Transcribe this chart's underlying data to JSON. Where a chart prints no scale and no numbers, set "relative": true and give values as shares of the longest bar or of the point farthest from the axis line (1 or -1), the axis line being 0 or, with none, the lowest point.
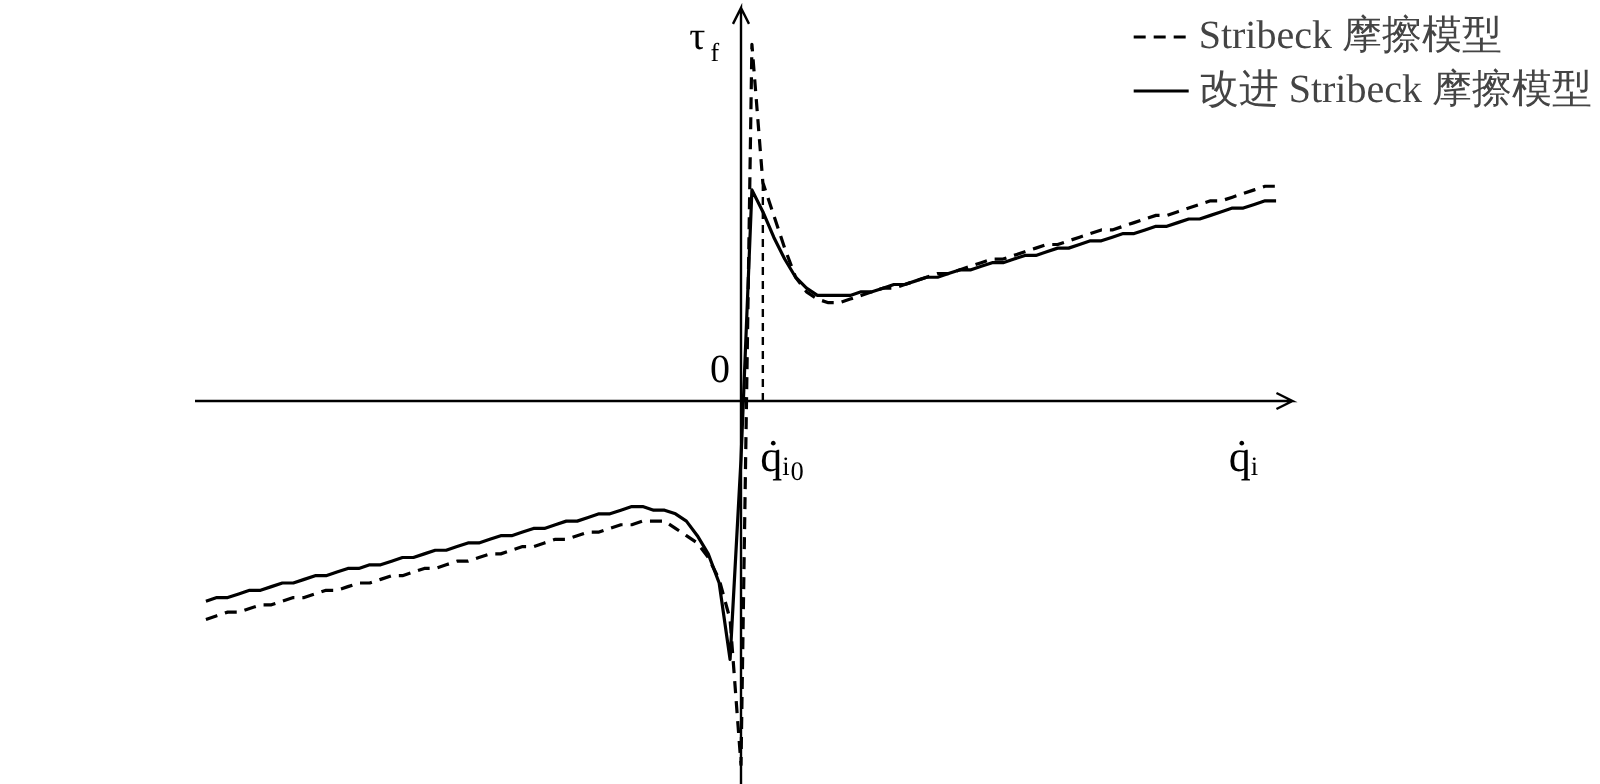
{
  "chart_data": {
    "type": "line",
    "relative": true,
    "xlabel": "q̇ᵢ",
    "ylabel": "τ$_{f}$",
    "legend": "top right",
    "grid": false,
    "annotations": [
      "0",
      "q̇ᵢ₀"
    ],
    "categories": [
      null,
      null,
      null,
      null,
      null,
      null,
      null,
      null,
      null,
      null,
      null,
      null,
      null,
      null,
      null,
      null,
      null,
      null,
      null,
      null,
      null,
      null,
      null,
      null,
      null,
      null,
      null,
      null,
      null,
      null,
      null,
      null,
      null,
      null,
      null,
      null,
      null,
      null,
      null,
      null,
      null,
      null,
      null,
      null,
      null,
      null,
      null,
      null,
      null,
      null,
      null,
      null,
      null,
      null,
      null,
      null,
      null,
      null,
      null,
      null,
      null,
      null,
      null,
      null,
      null,
      null,
      null,
      null,
      null,
      null,
      null,
      null,
      null,
      null,
      null,
      null,
      null,
      null,
      null,
      null,
      null,
      null,
      null,
      null,
      null,
      null,
      null,
      null,
      null,
      null,
      null,
      null,
      null,
      null,
      null,
      null,
      null,
      null,
      null
    ],
    "series": [
      {
        "name": "Stribeck 摩擦模型",
        "color": "#000000",
        "line_style": "dashed",
        "values": [
          -0.6,
          -0.59,
          -0.58,
          -0.58,
          -0.57,
          -0.56,
          -0.56,
          -0.55,
          -0.54,
          -0.54,
          -0.53,
          -0.52,
          -0.52,
          -0.51,
          -0.5,
          -0.5,
          -0.49,
          -0.48,
          -0.48,
          -0.47,
          -0.46,
          -0.46,
          -0.45,
          -0.44,
          -0.44,
          -0.43,
          -0.42,
          -0.42,
          -0.41,
          -0.4,
          -0.4,
          -0.39,
          -0.38,
          -0.38,
          -0.37,
          -0.36,
          -0.36,
          -0.35,
          -0.34,
          -0.34,
          -0.33,
          -0.33,
          -0.33,
          -0.35,
          -0.37,
          -0.39,
          -0.43,
          -0.49,
          -0.6,
          -1.0,
          0.98,
          0.6,
          0.51,
          0.42,
          0.34,
          0.3,
          0.28,
          0.27,
          0.27,
          0.28,
          0.29,
          0.3,
          0.31,
          0.31,
          0.32,
          0.33,
          0.34,
          0.35,
          0.35,
          0.36,
          0.37,
          0.38,
          0.39,
          0.39,
          0.4,
          0.41,
          0.42,
          0.43,
          0.43,
          0.44,
          0.45,
          0.46,
          0.47,
          0.47,
          0.48,
          0.49,
          0.5,
          0.51,
          0.51,
          0.52,
          0.53,
          0.54,
          0.55,
          0.55,
          0.56,
          0.57,
          0.58,
          0.59,
          0.59
        ]
      },
      {
        "name": "改进 Stribeck 摩擦模型",
        "color": "#000000",
        "line_style": "solid",
        "values": [
          -0.55,
          -0.54,
          -0.54,
          -0.53,
          -0.52,
          -0.52,
          -0.51,
          -0.5,
          -0.5,
          -0.49,
          -0.48,
          -0.48,
          -0.47,
          -0.46,
          -0.46,
          -0.45,
          -0.45,
          -0.44,
          -0.43,
          -0.43,
          -0.42,
          -0.41,
          -0.41,
          -0.4,
          -0.39,
          -0.39,
          -0.38,
          -0.37,
          -0.37,
          -0.36,
          -0.35,
          -0.35,
          -0.34,
          -0.33,
          -0.33,
          -0.32,
          -0.31,
          -0.31,
          -0.3,
          -0.29,
          -0.29,
          -0.3,
          -0.3,
          -0.31,
          -0.33,
          -0.37,
          -0.42,
          -0.5,
          -0.71,
          -0.16,
          0.58,
          0.52,
          0.45,
          0.39,
          0.34,
          0.31,
          0.29,
          0.29,
          0.29,
          0.29,
          0.3,
          0.3,
          0.31,
          0.32,
          0.32,
          0.33,
          0.34,
          0.34,
          0.35,
          0.36,
          0.36,
          0.37,
          0.38,
          0.38,
          0.39,
          0.4,
          0.4,
          0.41,
          0.42,
          0.42,
          0.43,
          0.44,
          0.44,
          0.45,
          0.46,
          0.46,
          0.47,
          0.48,
          0.48,
          0.49,
          0.5,
          0.5,
          0.51,
          0.52,
          0.53,
          0.53,
          0.54,
          0.55,
          0.55
        ]
      }
    ]
  }
}
